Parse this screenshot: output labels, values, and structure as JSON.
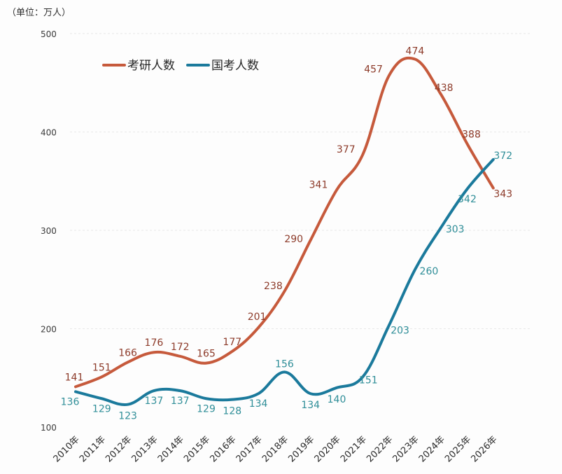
{
  "chart_data": {
    "type": "line",
    "unit_label": "（单位：万人）",
    "categories": [
      "2010年",
      "2011年",
      "2012年",
      "2013年",
      "2014年",
      "2015年",
      "2016年",
      "2017年",
      "2018年",
      "2019年",
      "2020年",
      "2021年",
      "2022年",
      "2023年",
      "2024年",
      "2025年",
      "2026年"
    ],
    "series": [
      {
        "name": "考研人数",
        "color": "#c65a3c",
        "values": [
          141,
          151,
          166,
          176,
          172,
          165,
          177,
          201,
          238,
          290,
          341,
          377,
          457,
          474,
          438,
          388,
          343
        ]
      },
      {
        "name": "国考人数",
        "color": "#1b7a9c",
        "values": [
          136,
          129,
          123,
          137,
          137,
          129,
          128,
          134,
          156,
          134,
          140,
          151,
          203,
          260,
          303,
          342,
          372
        ]
      }
    ],
    "yticks": [
      "100",
      "200",
      "300",
      "400",
      "500"
    ],
    "ylim": [
      100,
      500
    ],
    "legend_position": "top-left",
    "title": "",
    "xlabel": "",
    "ylabel": ""
  }
}
